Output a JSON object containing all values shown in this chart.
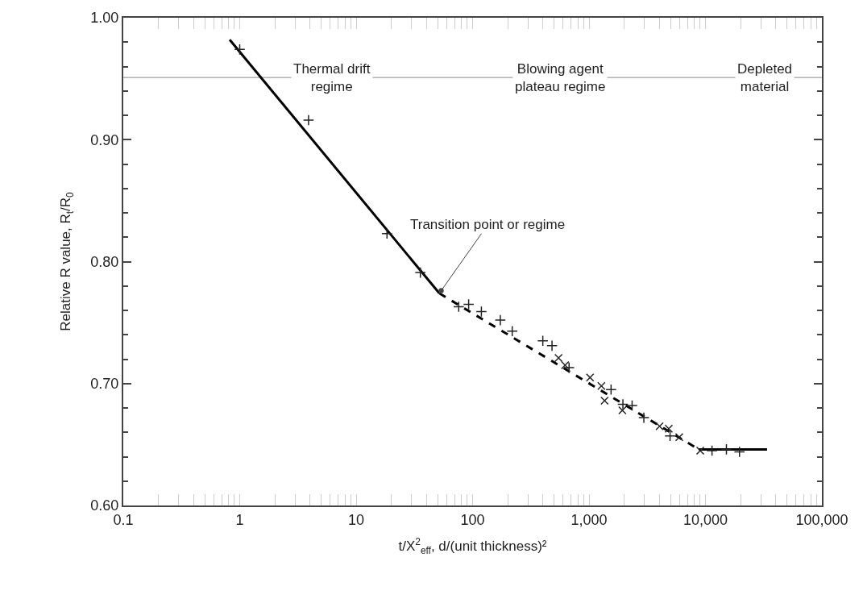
{
  "chart_data": {
    "type": "scatter",
    "xlabel": "t/X$^{2}$$_{eff}$, d/(unit thickness)²",
    "ylabel": "Relative R value, R$_{t}$/R$_{0}$",
    "log": "x",
    "xlim": [
      0.1,
      100000
    ],
    "xticks": [
      0.1,
      1,
      10,
      {
        "value": 100,
        "label": "100"
      },
      {
        "value": 1000,
        "label": "1,000"
      },
      {
        "value": 10000,
        "label": "10,000"
      },
      {
        "value": 100000,
        "label": "100,000"
      }
    ],
    "ylim": [
      0.6,
      1.0
    ],
    "yticks": [
      {
        "value": 0.6,
        "label": "0.60"
      },
      {
        "value": 0.7,
        "label": "0.70"
      },
      {
        "value": 0.8,
        "label": "0.80"
      },
      {
        "value": 0.9,
        "label": "0.90"
      },
      {
        "value": 1.0,
        "label": "1.00"
      }
    ],
    "grid": false,
    "series": [
      {
        "marker": "cross",
        "color": "#222222",
        "x": [
          1.0,
          3.9,
          18.4,
          35.6,
          76,
          92.5,
          119,
          173,
          219,
          401,
          481,
          674,
          1546,
          1954,
          2344,
          2958,
          4966,
          11380,
          15130,
          19600
        ],
        "values": [
          0.974,
          0.916,
          0.823,
          0.791,
          0.763,
          0.765,
          0.759,
          0.752,
          0.743,
          0.735,
          0.731,
          0.713,
          0.695,
          0.683,
          0.682,
          0.672,
          0.657,
          0.645,
          0.646,
          0.644
        ]
      },
      {
        "marker": "x",
        "color": "#222222",
        "x": [
          547,
          623,
          1020,
          1277,
          1360,
          1933,
          4036,
          4839,
          5957,
          9020
        ],
        "values": [
          0.721,
          0.715,
          0.705,
          0.698,
          0.686,
          0.678,
          0.665,
          0.663,
          0.656,
          0.645
        ]
      },
      {
        "type": "line",
        "line_style": "solid",
        "color": "#000000",
        "x": [
          0.82,
          51.8
        ],
        "values": [
          0.982,
          0.774
        ]
      },
      {
        "type": "line",
        "line_style": "dashed",
        "color": "#000000",
        "x": [
          51.8,
          8770
        ],
        "values": [
          0.774,
          0.646
        ]
      },
      {
        "type": "line",
        "line_style": "solid",
        "color": "#000000",
        "x": [
          8770,
          33800
        ],
        "values": [
          0.646,
          0.646
        ]
      }
    ],
    "ref_lines": [
      {
        "axis": "y",
        "value": 0.951,
        "color": "#888888"
      }
    ],
    "annotations": [
      {
        "text": "Thermal drift\nregime",
        "x": 6.2,
        "y": 0.951
      },
      {
        "text": "Blowing agent\nplateau regime",
        "x": 562,
        "y": 0.951
      },
      {
        "text": "Depleted\nmaterial",
        "x": 32100,
        "y": 0.951
      },
      {
        "text": "Transition point or regime",
        "x": 51.8,
        "y": 0.774
      }
    ]
  }
}
